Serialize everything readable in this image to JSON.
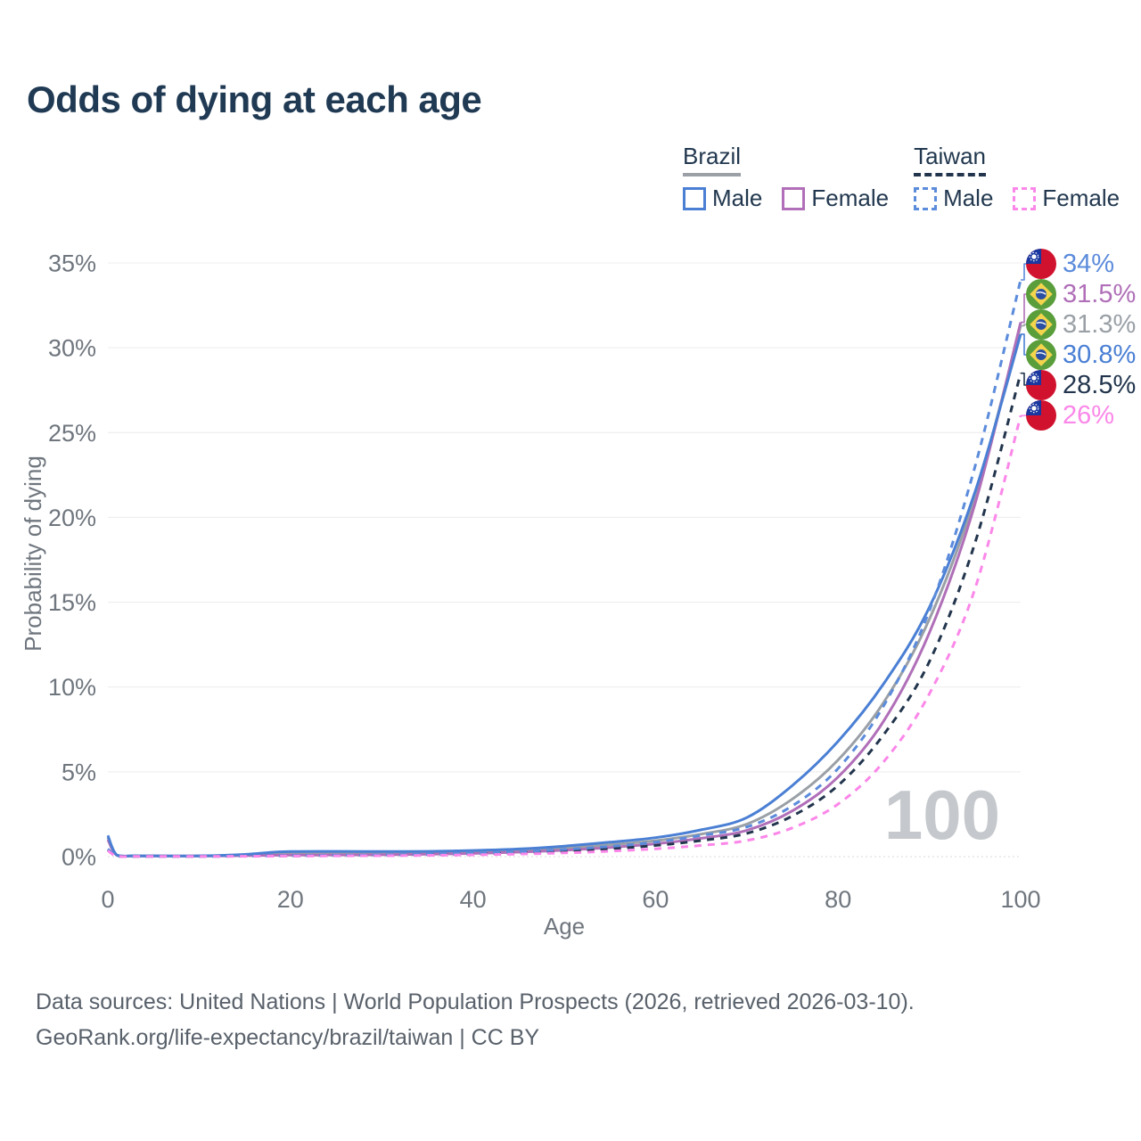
{
  "title": "Odds of dying at each age",
  "legend": {
    "groups": [
      {
        "label": "Brazil",
        "underline_style": "solid",
        "underline_color": "#9aa0a6",
        "items": [
          {
            "label": "Male",
            "color": "#4a7fd4",
            "dashed": false
          },
          {
            "label": "Female",
            "color": "#b06fb8",
            "dashed": false
          }
        ]
      },
      {
        "label": "Taiwan",
        "underline_style": "dashed",
        "underline_color": "#22354d",
        "items": [
          {
            "label": "Male",
            "color": "#5b8bdb",
            "dashed": true
          },
          {
            "label": "Female",
            "color": "#fb87e9",
            "dashed": true
          }
        ]
      }
    ]
  },
  "axes": {
    "y_label": "Probability of dying",
    "x_label": "Age",
    "y_ticks": [
      "35%",
      "30%",
      "25%",
      "20%",
      "15%",
      "10%",
      "5%",
      "0%"
    ],
    "x_ticks": [
      "0",
      "20",
      "40",
      "60",
      "80",
      "100"
    ]
  },
  "watermark": "100",
  "end_labels": [
    {
      "series": "Taiwan Male",
      "flag": "taiwan",
      "text": "34%",
      "color": "#5b8bdb",
      "end_value": 34.0
    },
    {
      "series": "Brazil Female",
      "flag": "brazil",
      "text": "31.5%",
      "color": "#b06fb8",
      "end_value": 31.5
    },
    {
      "series": "Brazil Total",
      "flag": "brazil",
      "text": "31.3%",
      "color": "#9aa0a6",
      "end_value": 31.3
    },
    {
      "series": "Brazil Male",
      "flag": "brazil",
      "text": "30.8%",
      "color": "#4a7fd4",
      "end_value": 30.8
    },
    {
      "series": "Taiwan Total",
      "flag": "taiwan",
      "text": "28.5%",
      "color": "#22354d",
      "end_value": 28.5
    },
    {
      "series": "Taiwan Female",
      "flag": "taiwan",
      "text": "26%",
      "color": "#fb87e9",
      "end_value": 26.0
    }
  ],
  "footer": {
    "line1": "Data sources: United Nations | World Population Prospects (2026, retrieved 2026-03-10).",
    "line2": "GeoRank.org/life-expectancy/brazil/taiwan | CC BY"
  },
  "chart_data": {
    "type": "line",
    "title": "Odds of dying at each age",
    "xlabel": "Age",
    "ylabel": "Probability of dying",
    "y_unit": "percent",
    "xlim": [
      0,
      100
    ],
    "ylim": [
      0,
      35
    ],
    "grid": "horizontal",
    "legend_position": "top-right",
    "x": [
      0,
      1,
      3,
      5,
      10,
      15,
      18,
      20,
      23,
      25,
      30,
      35,
      40,
      45,
      50,
      55,
      60,
      65,
      70,
      75,
      80,
      85,
      90,
      95,
      100
    ],
    "series": [
      {
        "name": "Brazil Total",
        "country": "Brazil",
        "sex": "all",
        "color": "#9aa0a6",
        "line_style": "solid",
        "end_label": "31.3%",
        "values": [
          1.13,
          0.085,
          0.045,
          0.04,
          0.04,
          0.095,
          0.17,
          0.2,
          0.2,
          0.21,
          0.21,
          0.23,
          0.28,
          0.36,
          0.5,
          0.7,
          0.94,
          1.33,
          1.92,
          3.4,
          5.7,
          9.1,
          14.0,
          21.2,
          31.3
        ]
      },
      {
        "name": "Brazil Female",
        "country": "Brazil",
        "sex": "female",
        "color": "#b06fb8",
        "line_style": "solid",
        "end_label": "31.5%",
        "values": [
          1.0,
          0.075,
          0.04,
          0.035,
          0.035,
          0.06,
          0.08,
          0.09,
          0.095,
          0.1,
          0.11,
          0.14,
          0.19,
          0.27,
          0.38,
          0.54,
          0.76,
          1.08,
          1.55,
          2.7,
          4.7,
          8.0,
          13.2,
          20.8,
          31.5
        ]
      },
      {
        "name": "Brazil Male",
        "country": "Brazil",
        "sex": "male",
        "color": "#4a7fd4",
        "line_style": "solid",
        "end_label": "30.8%",
        "values": [
          1.25,
          0.09,
          0.05,
          0.045,
          0.045,
          0.13,
          0.26,
          0.3,
          0.31,
          0.31,
          0.3,
          0.31,
          0.36,
          0.45,
          0.62,
          0.85,
          1.12,
          1.58,
          2.3,
          4.2,
          6.8,
          10.2,
          14.7,
          21.5,
          30.8
        ]
      },
      {
        "name": "Taiwan Total",
        "country": "Taiwan",
        "sex": "all",
        "color": "#22354d",
        "line_style": "dashed",
        "end_label": "28.5%",
        "values": [
          0.4,
          0.035,
          0.018,
          0.014,
          0.014,
          0.028,
          0.04,
          0.046,
          0.055,
          0.063,
          0.078,
          0.108,
          0.153,
          0.22,
          0.32,
          0.46,
          0.66,
          0.95,
          1.37,
          2.4,
          4.2,
          7.2,
          11.5,
          18.5,
          28.5
        ]
      },
      {
        "name": "Taiwan Male",
        "country": "Taiwan",
        "sex": "male",
        "color": "#5b8bdb",
        "line_style": "dashed",
        "end_label": "34%",
        "values": [
          0.45,
          0.04,
          0.02,
          0.015,
          0.015,
          0.035,
          0.05,
          0.06,
          0.07,
          0.08,
          0.1,
          0.14,
          0.2,
          0.29,
          0.42,
          0.6,
          0.85,
          1.25,
          1.75,
          3.0,
          5.2,
          8.9,
          14.5,
          23.0,
          34.0
        ]
      },
      {
        "name": "Taiwan Female",
        "country": "Taiwan",
        "sex": "female",
        "color": "#fb87e9",
        "line_style": "dashed",
        "end_label": "26%",
        "values": [
          0.35,
          0.03,
          0.015,
          0.012,
          0.012,
          0.02,
          0.028,
          0.032,
          0.04,
          0.045,
          0.055,
          0.075,
          0.105,
          0.15,
          0.22,
          0.32,
          0.46,
          0.66,
          0.95,
          1.7,
          3.1,
          5.6,
          9.6,
          15.8,
          26.0
        ]
      }
    ]
  }
}
